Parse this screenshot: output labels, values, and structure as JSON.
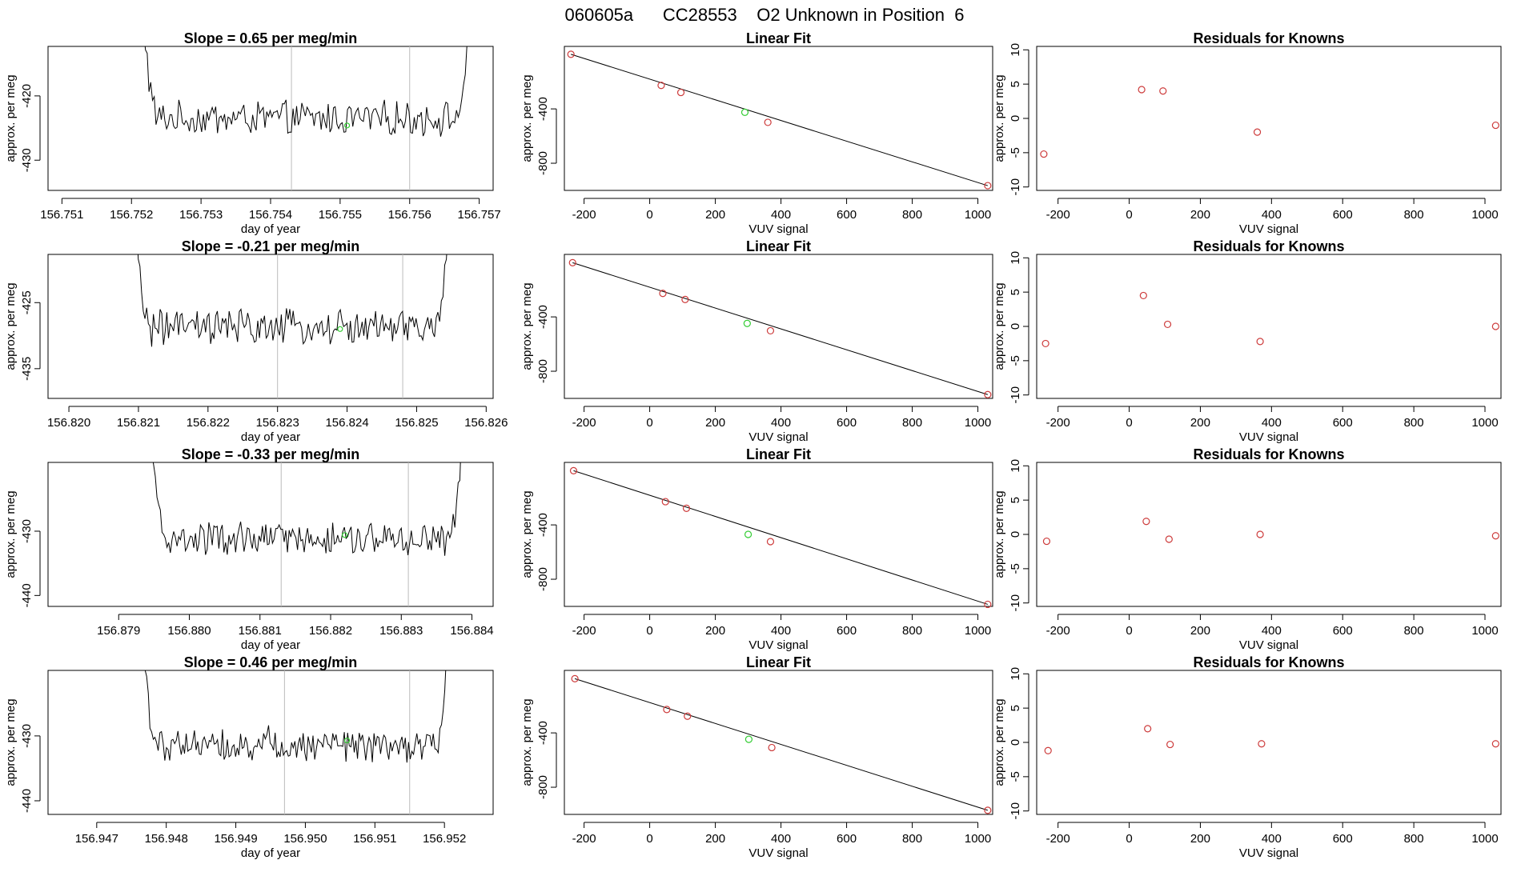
{
  "figure_title": "060605a      CC28553    O2 Unknown in Position  6",
  "colors": {
    "axis": "#000000",
    "trace": "#000000",
    "known_point": "#cd3b3b",
    "unknown_point": "#33cc33",
    "divider": "#bbbbbb"
  },
  "chart_data": [
    {
      "type": "line",
      "panel": "timeseries",
      "title": "Slope =  0.65  per meg/min",
      "xlabel": "day of year",
      "ylabel": "approx. per meg",
      "xlim": [
        156.7508,
        156.7572
      ],
      "ylim": [
        -434.7,
        -412.3
      ],
      "xticks": [
        "156.751",
        "156.752",
        "156.753",
        "156.754",
        "156.755",
        "156.756",
        "156.757"
      ],
      "xtick_values": [
        156.751,
        156.752,
        156.753,
        156.754,
        156.755,
        156.756,
        156.757
      ],
      "yticks": [
        "-420",
        "-430"
      ],
      "ytick_values": [
        -420,
        -430
      ],
      "x_range": [
        156.7521,
        156.7569
      ],
      "baseline": -423.5,
      "noise": 2.3,
      "verticals": [
        156.7543,
        156.756
      ],
      "unknown_point": {
        "x": 156.7551,
        "y": -424.6
      },
      "grid": false
    },
    {
      "type": "scatter",
      "panel": "linear_fit",
      "title": "Linear Fit",
      "xlabel": "VUV signal",
      "ylabel": "approx. per meg",
      "xlim": [
        -260,
        1045
      ],
      "ylim": [
        -1000,
        60
      ],
      "xticks": [
        "-200",
        "0",
        "200",
        "400",
        "600",
        "800",
        "1000"
      ],
      "xtick_values": [
        -200,
        0,
        200,
        400,
        600,
        800,
        1000
      ],
      "yticks": [
        "-400",
        "-800"
      ],
      "ytick_values": [
        -400,
        -800
      ],
      "known": {
        "x": [
          -240,
          35,
          95,
          360,
          1030
        ],
        "y": [
          2,
          -227,
          -279,
          -499,
          -965
        ]
      },
      "unknown": {
        "x": 290,
        "y": -425
      },
      "fit_line": {
        "x": [
          -240,
          1030
        ],
        "y": [
          2,
          -965
        ]
      },
      "grid": false
    },
    {
      "type": "scatter",
      "panel": "residuals",
      "title": "Residuals for Knowns",
      "xlabel": "VUV signal",
      "ylabel": "approx. per meg",
      "xlim": [
        -260,
        1045
      ],
      "ylim": [
        -10.5,
        10.5
      ],
      "xticks": [
        "-200",
        "0",
        "200",
        "400",
        "600",
        "800",
        "1000"
      ],
      "xtick_values": [
        -200,
        0,
        200,
        400,
        600,
        800,
        1000
      ],
      "yticks": [
        "-10",
        "-5",
        "0",
        "5",
        "10"
      ],
      "ytick_values": [
        -10,
        -5,
        0,
        5,
        10
      ],
      "x": [
        -240,
        35,
        95,
        360,
        1030
      ],
      "y": [
        -5.2,
        4.2,
        4.0,
        -2.0,
        -1.0
      ],
      "grid": false
    },
    {
      "type": "line",
      "panel": "timeseries",
      "title": "Slope =  -0.21  per meg/min",
      "xlabel": "day of year",
      "ylabel": "approx. per meg",
      "xlim": [
        156.8197,
        156.8261
      ],
      "ylim": [
        -439.5,
        -417.7
      ],
      "xticks": [
        "156.820",
        "156.821",
        "156.822",
        "156.823",
        "156.824",
        "156.825",
        "156.826"
      ],
      "xtick_values": [
        156.82,
        156.821,
        156.822,
        156.823,
        156.824,
        156.825,
        156.826
      ],
      "yticks": [
        "-425",
        "-435"
      ],
      "ytick_values": [
        -425,
        -435
      ],
      "x_range": [
        156.8209,
        156.8255
      ],
      "baseline": -428.8,
      "noise": 2.4,
      "verticals": [
        156.823,
        156.8248
      ],
      "unknown_point": {
        "x": 156.8239,
        "y": -429.0
      },
      "grid": false
    },
    {
      "type": "scatter",
      "panel": "linear_fit",
      "title": "Linear Fit",
      "xlabel": "VUV signal",
      "ylabel": "approx. per meg",
      "xlim": [
        -260,
        1045
      ],
      "ylim": [
        -1000,
        60
      ],
      "xticks": [
        "-200",
        "0",
        "200",
        "400",
        "600",
        "800",
        "1000"
      ],
      "xtick_values": [
        -200,
        0,
        200,
        400,
        600,
        800,
        1000
      ],
      "yticks": [
        "-400",
        "-800"
      ],
      "ytick_values": [
        -400,
        -800
      ],
      "known": {
        "x": [
          -235,
          40,
          108,
          368,
          1030
        ],
        "y": [
          -1,
          -227,
          -272,
          -502,
          -972
        ]
      },
      "unknown": {
        "x": 297,
        "y": -448
      },
      "fit_line": {
        "x": [
          -235,
          1030
        ],
        "y": [
          -1,
          -972
        ]
      },
      "grid": false
    },
    {
      "type": "scatter",
      "panel": "residuals",
      "title": "Residuals for Knowns",
      "xlabel": "VUV signal",
      "ylabel": "approx. per meg",
      "xlim": [
        -260,
        1045
      ],
      "ylim": [
        -10.5,
        10.5
      ],
      "xticks": [
        "-200",
        "0",
        "200",
        "400",
        "600",
        "800",
        "1000"
      ],
      "xtick_values": [
        -200,
        0,
        200,
        400,
        600,
        800,
        1000
      ],
      "yticks": [
        "-10",
        "-5",
        "0",
        "5",
        "10"
      ],
      "ytick_values": [
        -10,
        -5,
        0,
        5,
        10
      ],
      "x": [
        -235,
        40,
        108,
        368,
        1030
      ],
      "y": [
        -2.5,
        4.5,
        0.3,
        -2.2,
        0.0
      ],
      "grid": false
    },
    {
      "type": "line",
      "panel": "timeseries",
      "title": "Slope =  -0.33  per meg/min",
      "xlabel": "day of year",
      "ylabel": "approx. per meg",
      "xlim": [
        156.878,
        156.8843
      ],
      "ylim": [
        -441.7,
        -419.3
      ],
      "xticks": [
        "156.879",
        "156.880",
        "156.881",
        "156.882",
        "156.883",
        "156.884"
      ],
      "xtick_values": [
        156.879,
        156.88,
        156.881,
        156.882,
        156.883,
        156.884
      ],
      "yticks": [
        "-430",
        "-440"
      ],
      "ytick_values": [
        -430,
        -440
      ],
      "x_range": [
        156.8794,
        156.8839
      ],
      "baseline": -431.3,
      "noise": 2.3,
      "verticals": [
        156.8813,
        156.8831
      ],
      "unknown_point": {
        "x": 156.8822,
        "y": -430.6
      },
      "grid": false
    },
    {
      "type": "scatter",
      "panel": "linear_fit",
      "title": "Linear Fit",
      "xlabel": "VUV signal",
      "ylabel": "approx. per meg",
      "xlim": [
        -260,
        1045
      ],
      "ylim": [
        -1000,
        60
      ],
      "xticks": [
        "-200",
        "0",
        "200",
        "400",
        "600",
        "800",
        "1000"
      ],
      "xtick_values": [
        -200,
        0,
        200,
        400,
        600,
        800,
        1000
      ],
      "yticks": [
        "-400",
        "-800"
      ],
      "ytick_values": [
        -400,
        -800
      ],
      "known": {
        "x": [
          -232,
          48,
          112,
          368,
          1030
        ],
        "y": [
          -1,
          -229,
          -278,
          -523,
          -985
        ]
      },
      "unknown": {
        "x": 300,
        "y": -470
      },
      "fit_line": {
        "x": [
          -232,
          1030
        ],
        "y": [
          -1,
          -985
        ]
      },
      "grid": false
    },
    {
      "type": "scatter",
      "panel": "residuals",
      "title": "Residuals for Knowns",
      "xlabel": "VUV signal",
      "ylabel": "approx. per meg",
      "xlim": [
        -260,
        1045
      ],
      "ylim": [
        -10.5,
        10.5
      ],
      "xticks": [
        "-200",
        "0",
        "200",
        "400",
        "600",
        "800",
        "1000"
      ],
      "xtick_values": [
        -200,
        0,
        200,
        400,
        600,
        800,
        1000
      ],
      "yticks": [
        "-10",
        "-5",
        "0",
        "5",
        "10"
      ],
      "ytick_values": [
        -10,
        -5,
        0,
        5,
        10
      ],
      "x": [
        -232,
        48,
        112,
        368,
        1030
      ],
      "y": [
        -1.0,
        1.9,
        -0.7,
        0.0,
        -0.2
      ],
      "grid": false
    },
    {
      "type": "line",
      "panel": "timeseries",
      "title": "Slope =  0.46  per meg/min",
      "xlabel": "day of year",
      "ylabel": "approx. per meg",
      "xlim": [
        156.9463,
        156.9527
      ],
      "ylim": [
        -442.1,
        -419.9
      ],
      "xticks": [
        "156.947",
        "156.948",
        "156.949",
        "156.950",
        "156.951",
        "156.952"
      ],
      "xtick_values": [
        156.947,
        156.948,
        156.949,
        156.95,
        156.951,
        156.952
      ],
      "yticks": [
        "-430",
        "-440"
      ],
      "ytick_values": [
        -430,
        -440
      ],
      "x_range": [
        156.9476,
        156.9521
      ],
      "baseline": -431.2,
      "noise": 2.3,
      "verticals": [
        156.9497,
        156.9515
      ],
      "unknown_point": {
        "x": 156.9506,
        "y": -430.7
      },
      "grid": false
    },
    {
      "type": "scatter",
      "panel": "linear_fit",
      "title": "Linear Fit",
      "xlabel": "VUV signal",
      "ylabel": "approx. per meg",
      "xlim": [
        -260,
        1045
      ],
      "ylim": [
        -1000,
        60
      ],
      "xticks": [
        "-200",
        "0",
        "200",
        "400",
        "600",
        "800",
        "1000"
      ],
      "xtick_values": [
        -200,
        0,
        200,
        400,
        600,
        800,
        1000
      ],
      "yticks": [
        "-400",
        "-800"
      ],
      "ytick_values": [
        -400,
        -800
      ],
      "known": {
        "x": [
          -228,
          52,
          115,
          372,
          1030
        ],
        "y": [
          -1,
          -228,
          -277,
          -508,
          -970
        ]
      },
      "unknown": {
        "x": 302,
        "y": -447
      },
      "fit_line": {
        "x": [
          -228,
          1030
        ],
        "y": [
          -1,
          -970
        ]
      },
      "grid": false
    },
    {
      "type": "scatter",
      "panel": "residuals",
      "title": "Residuals for Knowns",
      "xlabel": "VUV signal",
      "ylabel": "approx. per meg",
      "xlim": [
        -260,
        1045
      ],
      "ylim": [
        -10.5,
        10.5
      ],
      "xticks": [
        "-200",
        "0",
        "200",
        "400",
        "600",
        "800",
        "1000"
      ],
      "xtick_values": [
        -200,
        0,
        200,
        400,
        600,
        800,
        1000
      ],
      "yticks": [
        "-10",
        "-5",
        "0",
        "5",
        "10"
      ],
      "ytick_values": [
        -10,
        -5,
        0,
        5,
        10
      ],
      "x": [
        -228,
        52,
        115,
        372,
        1030
      ],
      "y": [
        -1.2,
        2.0,
        -0.3,
        -0.2,
        -0.2
      ],
      "grid": false
    }
  ]
}
